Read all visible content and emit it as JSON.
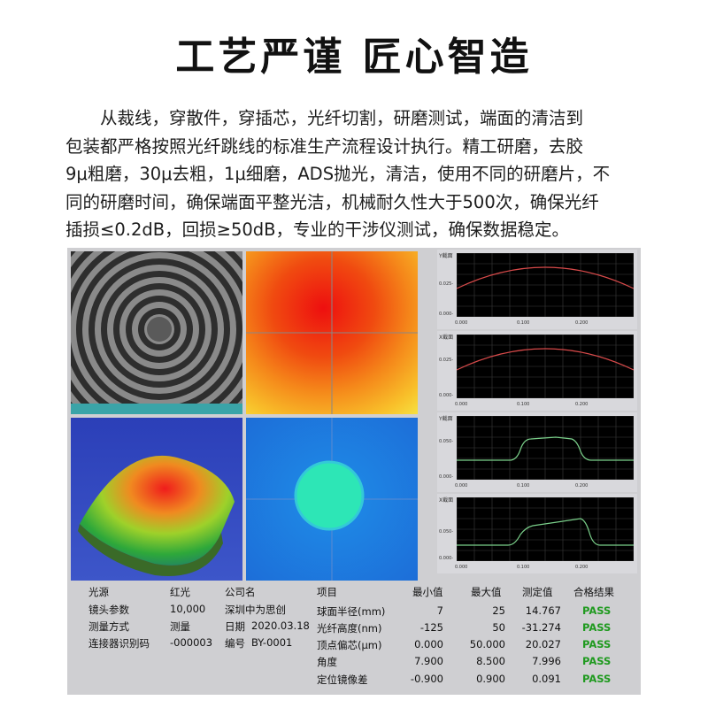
{
  "page": {
    "title": "工艺严谨  匠心智造",
    "paragraph_lines": [
      "　　从裁线，穿散件，穿插芯，光纤切割，研磨测试，端面的清洁到",
      "包装都严格按照光纤跳线的标准生产流程设计执行。精工研磨，去胶",
      "9μ粗磨，30μ去粗，1μ细磨，ADS抛光，清洁，使用不同的研磨片，不",
      "同的研磨时间，确保端面平整光洁，机械耐久性大于500次，确保光纤",
      "插损≤0.2dB，回损≥50dB，专业的干涉仪测试，确保数据稳定。"
    ]
  },
  "plots": [
    {
      "tag": "Y截面",
      "ticks_y": [
        "0.025-",
        "0.000-"
      ],
      "ticks_x": [
        "0.000",
        "0.100",
        "0.200"
      ],
      "curve_color": "#d84a4a"
    },
    {
      "tag": "X截面",
      "ticks_y": [
        "0.025-",
        "0.000-"
      ],
      "ticks_x": [
        "0.000",
        "0.100",
        "0.200"
      ],
      "curve_color": "#d84a4a"
    },
    {
      "tag": "Y截面",
      "ticks_y": [
        "0.050-",
        "0.000-"
      ],
      "ticks_x": [
        "0.000",
        "0.100",
        "0.200"
      ],
      "curve_color": "#7ad08a"
    },
    {
      "tag": "X截面",
      "ticks_y": [
        "0.050-",
        "0.000-"
      ],
      "ticks_x": [
        "0.000",
        "0.100",
        "0.200"
      ],
      "curve_color": "#7ad08a"
    }
  ],
  "info": {
    "rows": [
      {
        "k": "光源",
        "v": "红光"
      },
      {
        "k": "镜头参数",
        "v": "10,000"
      },
      {
        "k": "测量方式",
        "v": "测量"
      },
      {
        "k": "连接器识别码",
        "v": "-000003"
      }
    ],
    "company_label": "公司名",
    "company": "深圳中为思创",
    "date_label": "日期",
    "date": "2020.03.18",
    "serial_label": "编号",
    "serial": "BY-0001"
  },
  "results": {
    "headers": [
      "项目",
      "最小值",
      "最大值",
      "测定值",
      "合格结果"
    ],
    "rows": [
      {
        "item": "球面半径(mm)",
        "min": "7",
        "max": "25",
        "val": "14.767",
        "res": "PASS"
      },
      {
        "item": "光纤高度(nm)",
        "min": "-125",
        "max": "50",
        "val": "-31.274",
        "res": "PASS"
      },
      {
        "item": "顶点偏芯(μm)",
        "min": "0.000",
        "max": "50.000",
        "val": "20.027",
        "res": "PASS"
      },
      {
        "item": "角度",
        "min": "7.900",
        "max": "8.500",
        "val": "7.996",
        "res": "PASS"
      },
      {
        "item": "定位镜像差",
        "min": "-0.900",
        "max": "0.900",
        "val": "0.091",
        "res": "PASS"
      }
    ]
  },
  "colors": {
    "pass": "#1f9a1f"
  }
}
